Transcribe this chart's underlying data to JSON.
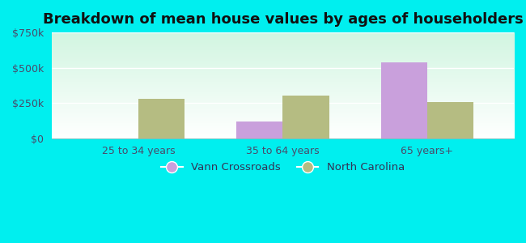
{
  "title": "Breakdown of mean house values by ages of householders",
  "categories": [
    "25 to 34 years",
    "35 to 64 years",
    "65 years+"
  ],
  "vann_crossroads": [
    null,
    120000,
    540000
  ],
  "north_carolina": [
    280000,
    300000,
    255000
  ],
  "vann_color": "#c9a0dc",
  "nc_color": "#b5bc82",
  "ylim": [
    0,
    750000
  ],
  "yticks": [
    0,
    250000,
    500000,
    750000
  ],
  "ytick_labels": [
    "$0",
    "$250k",
    "$500k",
    "$750k"
  ],
  "bar_width": 0.32,
  "legend_labels": [
    "Vann Crossroads",
    "North Carolina"
  ],
  "bg_color": "#00efef",
  "title_fontsize": 13,
  "tick_label_fontsize": 9,
  "legend_fontsize": 9.5
}
